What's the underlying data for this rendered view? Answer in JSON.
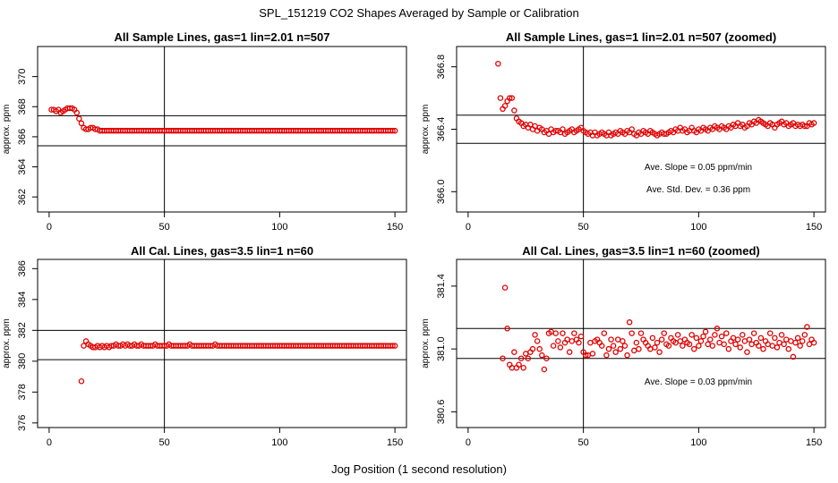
{
  "figure": {
    "title": "SPL_151219  CO2 Shapes Averaged by Sample or Calibration",
    "xlabel": "Jog Position (1 second resolution)"
  },
  "colors": {
    "points": "#e00000",
    "lines": "#000000"
  },
  "chart_data": [
    {
      "type": "scatter",
      "title": "All Sample Lines, gas=1 lin=2.01 n=507",
      "xlabel": "",
      "ylabel": "approx. ppm",
      "xlim": [
        -5,
        155
      ],
      "ylim": [
        361,
        372
      ],
      "xticks": [
        0,
        50,
        100,
        150
      ],
      "yticks": [
        362,
        364,
        366,
        368,
        370
      ],
      "vline": 50,
      "hlines": [
        367.4,
        365.4
      ],
      "x_start": 1,
      "x_end": 150,
      "y": [
        367.8,
        367.8,
        367.7,
        367.8,
        367.6,
        367.7,
        367.8,
        367.9,
        367.9,
        367.9,
        367.8,
        367.6,
        367.2,
        366.9,
        366.6,
        366.5,
        366.5,
        366.6,
        366.6,
        366.5,
        366.5,
        366.4,
        366.4,
        366.4,
        366.4,
        366.4,
        366.4,
        366.4,
        366.4,
        366.4,
        366.4,
        366.4,
        366.4,
        366.4,
        366.4,
        366.4,
        366.4,
        366.4,
        366.4,
        366.4,
        366.4,
        366.4,
        366.4,
        366.4,
        366.4,
        366.4,
        366.4,
        366.4,
        366.4,
        366.4,
        366.4,
        366.4,
        366.4,
        366.4,
        366.4,
        366.4,
        366.4,
        366.4,
        366.4,
        366.4,
        366.4,
        366.4,
        366.4,
        366.4,
        366.4,
        366.4,
        366.4,
        366.4,
        366.4,
        366.4,
        366.4,
        366.4,
        366.4,
        366.4,
        366.4,
        366.4,
        366.4,
        366.4,
        366.4,
        366.4,
        366.4,
        366.4,
        366.4,
        366.4,
        366.4,
        366.4,
        366.4,
        366.4,
        366.4,
        366.4,
        366.4,
        366.4,
        366.4,
        366.4,
        366.4,
        366.4,
        366.4,
        366.4,
        366.4,
        366.4,
        366.4,
        366.4,
        366.4,
        366.4,
        366.4,
        366.4,
        366.4,
        366.4,
        366.4,
        366.4,
        366.4,
        366.4,
        366.4,
        366.4,
        366.4,
        366.4,
        366.4,
        366.4,
        366.4,
        366.4,
        366.4,
        366.4,
        366.4,
        366.4,
        366.4,
        366.4,
        366.4,
        366.4,
        366.4,
        366.4,
        366.4,
        366.4,
        366.4,
        366.4,
        366.4,
        366.4,
        366.4,
        366.4,
        366.4,
        366.4,
        366.4,
        366.4,
        366.4,
        366.4,
        366.4,
        366.4,
        366.4,
        366.4,
        366.4,
        366.4
      ],
      "annotations": []
    },
    {
      "type": "scatter",
      "title": "All Sample Lines, gas=1 lin=2.01 n=507 (zoomed)",
      "xlabel": "",
      "ylabel": "approx. ppm",
      "xlim": [
        -5,
        155
      ],
      "ylim": [
        365.87,
        366.93
      ],
      "xticks": [
        0,
        50,
        100,
        150
      ],
      "yticks": [
        366.0,
        366.4,
        366.8
      ],
      "vline": 50,
      "hlines": [
        366.49,
        366.31
      ],
      "x_start": 13,
      "x_end": 150,
      "y": [
        366.82,
        366.6,
        366.53,
        366.55,
        366.58,
        366.6,
        366.6,
        366.52,
        366.47,
        366.45,
        366.44,
        366.42,
        366.43,
        366.41,
        366.43,
        366.4,
        366.42,
        366.39,
        366.41,
        366.4,
        366.38,
        366.39,
        366.37,
        366.4,
        366.38,
        366.39,
        366.39,
        366.38,
        366.4,
        366.37,
        366.38,
        366.39,
        366.4,
        366.38,
        366.39,
        366.4,
        366.41,
        366.39,
        366.38,
        366.37,
        366.38,
        366.36,
        366.38,
        366.36,
        366.37,
        366.38,
        366.37,
        366.36,
        366.38,
        366.36,
        366.37,
        366.38,
        366.37,
        366.39,
        366.38,
        366.37,
        366.39,
        366.38,
        366.4,
        366.37,
        366.36,
        366.38,
        366.37,
        366.39,
        366.38,
        366.37,
        366.39,
        366.38,
        366.37,
        366.36,
        366.37,
        366.38,
        366.37,
        366.37,
        366.38,
        366.39,
        366.38,
        366.4,
        366.39,
        366.41,
        366.39,
        366.4,
        366.38,
        366.39,
        366.41,
        366.39,
        366.38,
        366.4,
        366.39,
        366.41,
        366.4,
        366.39,
        366.41,
        366.4,
        366.42,
        366.41,
        366.4,
        366.42,
        366.41,
        366.4,
        366.42,
        366.41,
        366.43,
        366.42,
        366.44,
        366.42,
        366.43,
        366.41,
        366.42,
        366.44,
        366.43,
        366.45,
        366.44,
        366.46,
        366.45,
        366.44,
        366.43,
        366.42,
        366.44,
        366.43,
        366.41,
        366.43,
        366.44,
        366.45,
        366.43,
        366.44,
        366.42,
        366.43,
        366.44,
        366.42,
        366.43,
        366.42,
        366.43,
        366.42,
        366.42,
        366.44,
        366.43,
        366.44
      ],
      "annotations": [
        "Ave. Slope =  0.05  ppm/min",
        "Ave. Std. Dev. =  0.36  ppm"
      ]
    },
    {
      "type": "scatter",
      "title": "All Cal. Lines, gas=3.5 lin=1 n=60",
      "xlabel": "",
      "ylabel": "approx. ppm",
      "xlim": [
        -5,
        155
      ],
      "ylim": [
        375.7,
        386.6
      ],
      "xticks": [
        0,
        50,
        100,
        150
      ],
      "yticks": [
        376,
        378,
        380,
        382,
        384,
        386
      ],
      "vline": 50,
      "hlines": [
        382.0,
        380.1
      ],
      "x_start": 14,
      "x_end": 150,
      "y": [
        378.7,
        381.0,
        381.3,
        381.1,
        381.0,
        380.9,
        380.9,
        381.0,
        380.9,
        381.0,
        380.9,
        381.0,
        380.9,
        381.0,
        381.0,
        381.1,
        381.0,
        381.0,
        381.1,
        381.0,
        381.1,
        381.0,
        381.0,
        381.1,
        381.0,
        381.0,
        381.1,
        381.0,
        381.0,
        381.0,
        381.0,
        381.0,
        381.1,
        381.0,
        381.0,
        381.0,
        381.0,
        381.0,
        381.1,
        381.0,
        381.0,
        381.0,
        381.0,
        381.0,
        381.0,
        381.0,
        381.0,
        381.1,
        381.0,
        381.0,
        381.0,
        381.0,
        381.0,
        381.0,
        381.0,
        381.0,
        381.0,
        381.0,
        381.1,
        381.0,
        381.0,
        381.0,
        381.0,
        381.0,
        381.0,
        381.0,
        381.0,
        381.0,
        381.0,
        381.0,
        381.0,
        381.0,
        381.0,
        381.0,
        381.0,
        381.0,
        381.0,
        381.0,
        381.0,
        381.0,
        381.0,
        381.0,
        381.0,
        381.0,
        381.0,
        381.0,
        381.0,
        381.0,
        381.0,
        381.0,
        381.0,
        381.0,
        381.0,
        381.0,
        381.0,
        381.0,
        381.0,
        381.0,
        381.0,
        381.0,
        381.0,
        381.0,
        381.0,
        381.0,
        381.0,
        381.0,
        381.0,
        381.0,
        381.0,
        381.0,
        381.0,
        381.0,
        381.0,
        381.0,
        381.0,
        381.0,
        381.0,
        381.0,
        381.0,
        381.0,
        381.0,
        381.0,
        381.0,
        381.0,
        381.0,
        381.0,
        381.0,
        381.0,
        381.0,
        381.0,
        381.0,
        381.0,
        381.0,
        381.0,
        381.0,
        381.0,
        381.0
      ],
      "annotations": []
    },
    {
      "type": "scatter",
      "title": "All Cal. Lines, gas=3.5 lin=1 n=60 (zoomed)",
      "xlabel": "",
      "ylabel": "approx. ppm",
      "xlim": [
        -5,
        155
      ],
      "ylim": [
        380.5,
        381.57
      ],
      "xticks": [
        0,
        50,
        100,
        150
      ],
      "yticks": [
        380.6,
        381.0,
        381.4
      ],
      "vline": 50,
      "hlines": [
        381.13,
        380.94
      ],
      "x_start": 15,
      "x_end": 150,
      "y": [
        380.94,
        381.39,
        381.13,
        380.9,
        380.88,
        380.98,
        380.88,
        380.9,
        380.94,
        380.88,
        380.97,
        380.94,
        380.98,
        381.0,
        381.09,
        381.05,
        381.0,
        380.96,
        380.87,
        380.94,
        381.1,
        381.11,
        381.02,
        381.1,
        381.05,
        381.01,
        381.1,
        381.04,
        381.06,
        380.98,
        381.05,
        381.1,
        381.06,
        381.04,
        381.08,
        380.98,
        380.96,
        380.96,
        381.04,
        380.97,
        381.05,
        381.06,
        381.04,
        381.02,
        381.1,
        380.96,
        381.0,
        381.06,
        381.02,
        380.98,
        381.06,
        381.0,
        381.05,
        381.02,
        380.96,
        381.17,
        381.1,
        380.99,
        381.04,
        381.0,
        381.1,
        381.06,
        381.04,
        381.02,
        381.0,
        381.07,
        381.01,
        381.04,
        380.98,
        381.06,
        381.1,
        381.03,
        381.02,
        381.07,
        381.05,
        381.04,
        381.09,
        381.05,
        381.02,
        381.06,
        381.04,
        381.03,
        381.09,
        381.0,
        381.07,
        381.02,
        381.05,
        381.08,
        381.11,
        381.03,
        381.06,
        381.02,
        381.09,
        381.13,
        381.04,
        381.08,
        381.03,
        381.1,
        381.0,
        381.05,
        381.07,
        381.03,
        381.06,
        381.01,
        381.09,
        381.05,
        380.98,
        381.06,
        381.03,
        381.1,
        381.04,
        381.02,
        381.07,
        381.0,
        381.05,
        381.03,
        381.1,
        381.02,
        381.07,
        381.01,
        381.04,
        381.09,
        381.03,
        381.06,
        381.0,
        381.05,
        380.95,
        381.04,
        381.07,
        381.02,
        381.05,
        381.09,
        381.14,
        381.03,
        381.06,
        381.04,
        381.05
      ],
      "annotations": [
        "Ave. Slope =  0.03  ppm/min"
      ]
    }
  ]
}
